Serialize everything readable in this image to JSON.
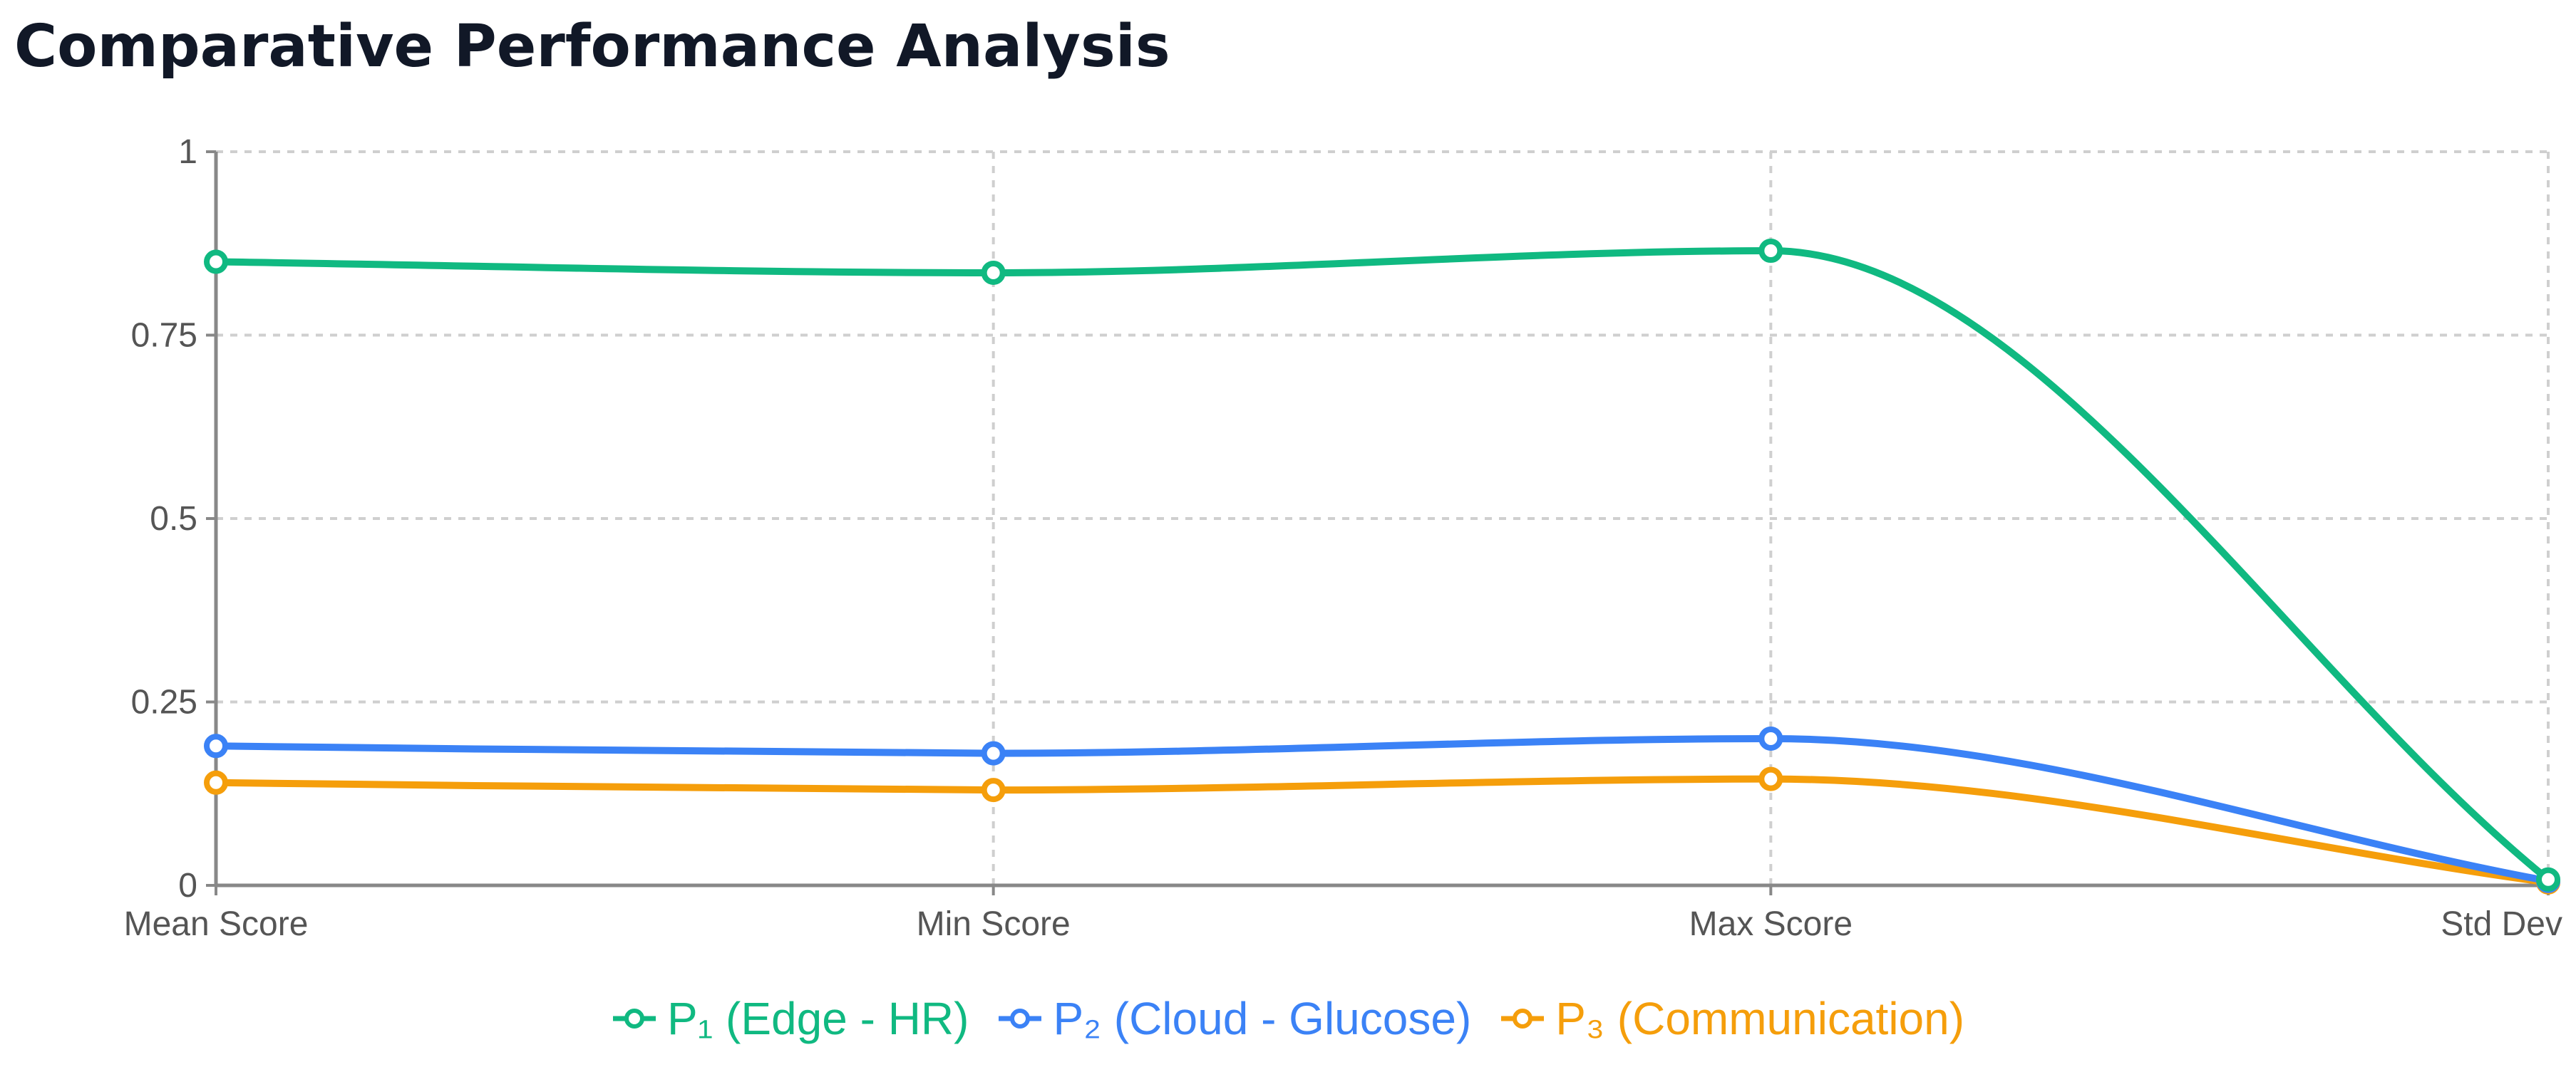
{
  "chart_data": {
    "type": "line",
    "title": "Comparative Performance Analysis",
    "xlabel": "",
    "ylabel": "",
    "categories": [
      "Mean Score",
      "Min Score",
      "Max Score",
      "Std Dev"
    ],
    "y_ticks": [
      "0",
      "0.25",
      "0.5",
      "0.75",
      "1"
    ],
    "y_tick_values": [
      0,
      0.25,
      0.5,
      0.75,
      1
    ],
    "ylim": [
      0,
      1
    ],
    "grid": true,
    "curve": "smooth",
    "legend_position": "bottom",
    "series": [
      {
        "name": "P₁ (Edge - HR)",
        "color": "#10b981",
        "values": [
          0.85,
          0.835,
          0.865,
          0.008
        ]
      },
      {
        "name": "P₂ (Cloud - Glucose)",
        "color": "#3b82f6",
        "values": [
          0.19,
          0.18,
          0.2,
          0.006
        ]
      },
      {
        "name": "P₃ (Communication)",
        "color": "#f59e0b",
        "values": [
          0.14,
          0.13,
          0.145,
          0.004
        ]
      }
    ]
  }
}
